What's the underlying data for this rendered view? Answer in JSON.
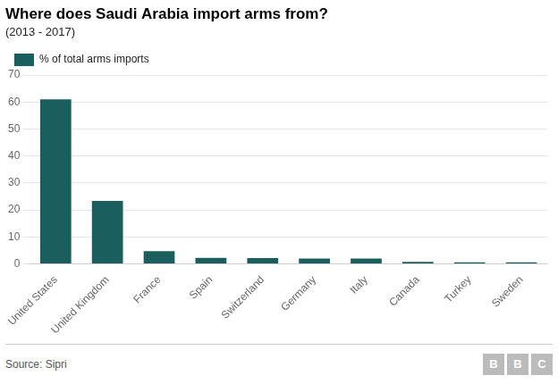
{
  "chart_data": {
    "type": "bar",
    "title": "Where does Saudi Arabia import arms from?",
    "subtitle": "(2013 - 2017)",
    "annotations": [
      "Source: Sipri",
      "BBC"
    ],
    "categories": [
      "United States",
      "United Kingdom",
      "France",
      "Spain",
      "Switzerland",
      "Germany",
      "Italy",
      "Canada",
      "Turkey",
      "Sweden"
    ],
    "series": [
      {
        "name": "% of total arms imports",
        "color": "#1a5f5e",
        "values": [
          61.0,
          23.3,
          4.7,
          2.2,
          2.1,
          2.0,
          2.0,
          0.7,
          0.6,
          0.6
        ]
      }
    ],
    "ylim": [
      0,
      70
    ],
    "yticks": [
      0,
      10,
      20,
      30,
      40,
      50,
      60,
      70
    ],
    "grid": true,
    "legend": "upper left"
  }
}
